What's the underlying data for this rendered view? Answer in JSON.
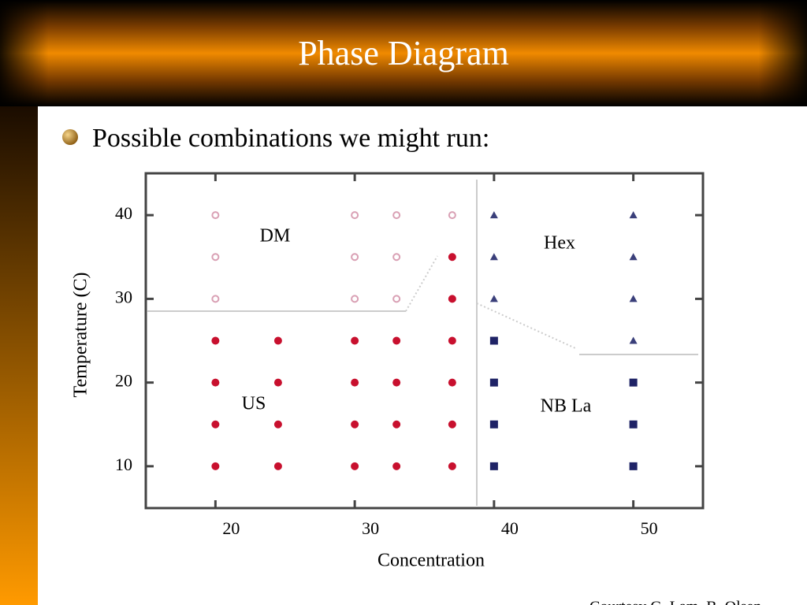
{
  "slide": {
    "title": "Phase Diagram",
    "bullet": "Possible combinations we might run:",
    "footer": "Courtesy G. Lam, B. Olsen"
  },
  "chart_data": {
    "type": "scatter",
    "xlabel": "Concentration",
    "ylabel": "Temperature (C)",
    "xlim": [
      15,
      55
    ],
    "ylim": [
      5,
      45
    ],
    "xticks": [
      20,
      30,
      40,
      50
    ],
    "yticks": [
      10,
      20,
      30,
      40
    ],
    "series": [
      {
        "name": "DM",
        "color": "#d9a0b4",
        "marker": "circle-open",
        "x": [
          20,
          20,
          20,
          30,
          30,
          30,
          33,
          33,
          33,
          37
        ],
        "values": [
          40,
          35,
          30,
          40,
          35,
          30,
          40,
          35,
          30,
          40
        ]
      },
      {
        "name": "Hex",
        "color": "#3a3f7a",
        "marker": "triangle",
        "x": [
          40,
          40,
          40,
          50,
          50,
          50,
          50
        ],
        "values": [
          40,
          35,
          30,
          40,
          35,
          30,
          25
        ]
      },
      {
        "name": "US",
        "color": "#c8102e",
        "marker": "circle",
        "x": [
          20,
          20,
          20,
          20,
          24.5,
          24.5,
          24.5,
          24.5,
          30,
          30,
          30,
          30,
          33,
          33,
          33,
          33,
          37,
          37,
          37,
          37,
          37,
          37
        ],
        "values": [
          25,
          20,
          15,
          10,
          25,
          20,
          15,
          10,
          25,
          20,
          15,
          10,
          25,
          20,
          15,
          10,
          35,
          30,
          25,
          20,
          15,
          10
        ]
      },
      {
        "name": "NB La",
        "color": "#1f2366",
        "marker": "square",
        "x": [
          40,
          40,
          40,
          40,
          50,
          50,
          50
        ],
        "values": [
          25,
          20,
          15,
          10,
          20,
          15,
          10
        ]
      }
    ]
  }
}
